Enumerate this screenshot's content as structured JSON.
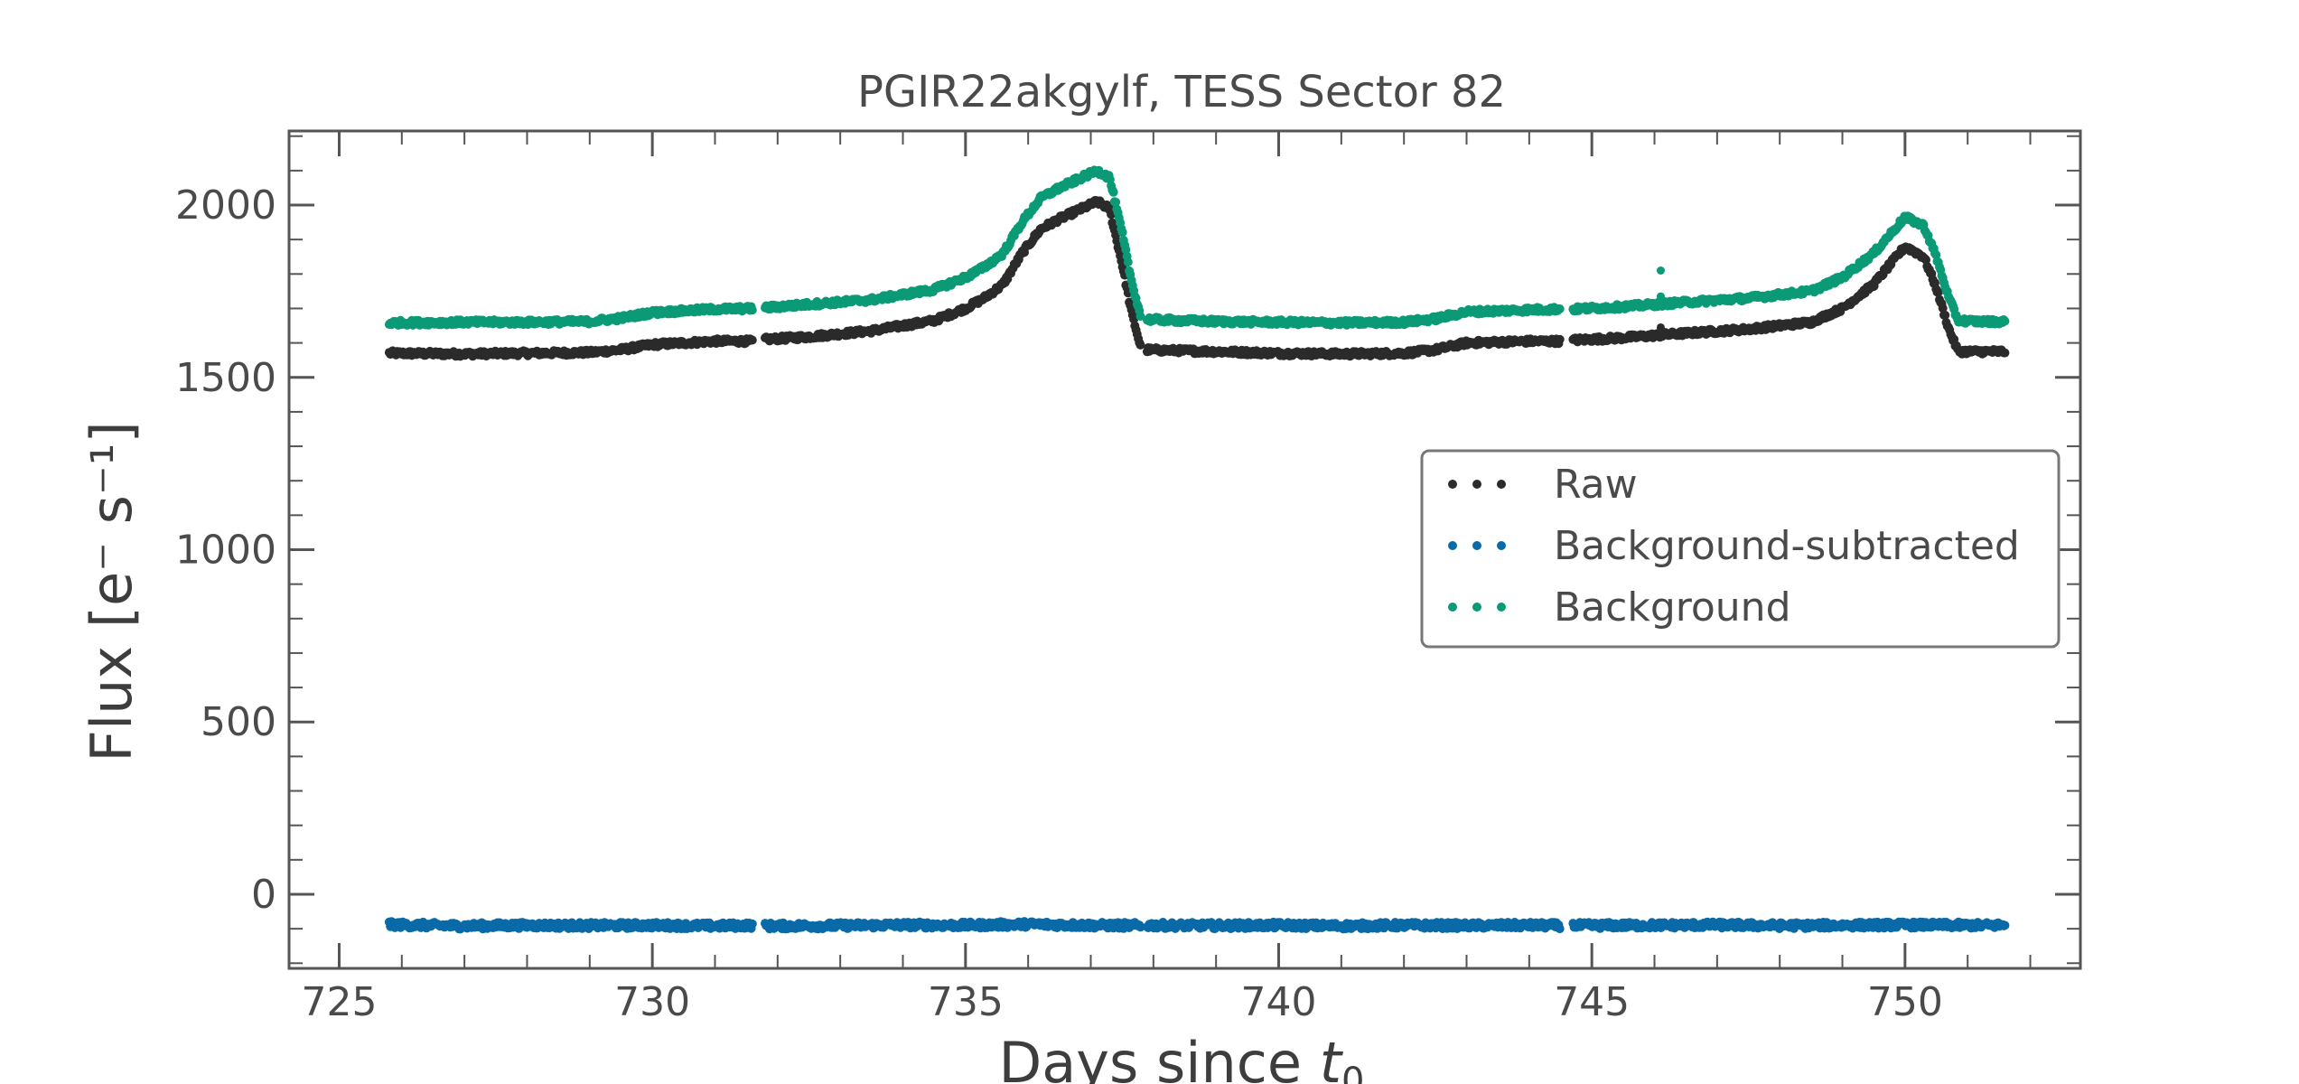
{
  "chart_data": {
    "type": "scatter",
    "title": "PGIR22akgylf, TESS Sector 82",
    "xlabel_prefix": "Days since ",
    "xlabel_var": "t",
    "xlabel_sub": "0",
    "ylabel": "Flux [e⁻ s⁻¹]",
    "xlim": [
      724.2,
      752.8
    ],
    "ylim": [
      -215,
      2215
    ],
    "x_ticks": [
      725,
      730,
      735,
      740,
      745,
      750
    ],
    "x_tick_labels": [
      "725",
      "730",
      "735",
      "740",
      "745",
      "750"
    ],
    "y_ticks": [
      0,
      500,
      1000,
      1500,
      2000
    ],
    "y_tick_labels": [
      "0",
      "500",
      "1000",
      "1500",
      "2000"
    ],
    "grid": false,
    "legend_position": "center-right",
    "segments": [
      [
        725.8,
        731.6
      ],
      [
        731.8,
        737.8
      ],
      [
        737.9,
        744.5
      ],
      [
        744.7,
        751.6
      ]
    ],
    "series": [
      {
        "name": "Raw",
        "color": "#2b2b2b",
        "points": [
          [
            725.8,
            1570
          ],
          [
            727,
            1568
          ],
          [
            728,
            1570
          ],
          [
            729,
            1572
          ],
          [
            729.5,
            1580
          ],
          [
            730,
            1595
          ],
          [
            731,
            1605
          ],
          [
            731.6,
            1605
          ],
          [
            731.8,
            1610
          ],
          [
            732.5,
            1618
          ],
          [
            733.5,
            1635
          ],
          [
            734.5,
            1665
          ],
          [
            735,
            1700
          ],
          [
            735.3,
            1730
          ],
          [
            735.6,
            1770
          ],
          [
            735.9,
            1860
          ],
          [
            736.2,
            1930
          ],
          [
            736.5,
            1960
          ],
          [
            736.8,
            1985
          ],
          [
            737.1,
            2010
          ],
          [
            737.3,
            1990
          ],
          [
            737.5,
            1830
          ],
          [
            737.65,
            1690
          ],
          [
            737.8,
            1585
          ],
          [
            737.9,
            1580
          ],
          [
            739,
            1575
          ],
          [
            740,
            1570
          ],
          [
            741,
            1568
          ],
          [
            742,
            1570
          ],
          [
            742.5,
            1580
          ],
          [
            743,
            1600
          ],
          [
            744,
            1605
          ],
          [
            744.5,
            1605
          ],
          [
            744.7,
            1608
          ],
          [
            745.5,
            1615
          ],
          [
            746.5,
            1628
          ],
          [
            747.5,
            1640
          ],
          [
            748.5,
            1660
          ],
          [
            749,
            1700
          ],
          [
            749.5,
            1770
          ],
          [
            750,
            1880
          ],
          [
            750.3,
            1850
          ],
          [
            750.5,
            1760
          ],
          [
            750.7,
            1640
          ],
          [
            750.85,
            1575
          ],
          [
            751.2,
            1575
          ],
          [
            751.6,
            1575
          ]
        ]
      },
      {
        "name": "Background-subtracted",
        "color": "#0a6aa8",
        "points": [
          [
            725.8,
            -88
          ],
          [
            727,
            -92
          ],
          [
            728,
            -90
          ],
          [
            729,
            -91
          ],
          [
            730,
            -90
          ],
          [
            731,
            -92
          ],
          [
            731.6,
            -90
          ],
          [
            731.8,
            -92
          ],
          [
            733,
            -91
          ],
          [
            734,
            -89
          ],
          [
            735,
            -90
          ],
          [
            736,
            -87
          ],
          [
            737,
            -90
          ],
          [
            737.8,
            -91
          ],
          [
            737.9,
            -90
          ],
          [
            739,
            -91
          ],
          [
            740,
            -90
          ],
          [
            741,
            -92
          ],
          [
            742,
            -90
          ],
          [
            743,
            -91
          ],
          [
            744,
            -90
          ],
          [
            744.5,
            -91
          ],
          [
            744.7,
            -91
          ],
          [
            746,
            -90
          ],
          [
            747,
            -89
          ],
          [
            748,
            -91
          ],
          [
            749,
            -90
          ],
          [
            750,
            -89
          ],
          [
            751,
            -90
          ],
          [
            751.6,
            -90
          ]
        ]
      },
      {
        "name": "Background",
        "color": "#0b9a76",
        "points": [
          [
            725.8,
            1658
          ],
          [
            727,
            1660
          ],
          [
            728,
            1660
          ],
          [
            729,
            1662
          ],
          [
            729.5,
            1672
          ],
          [
            730,
            1688
          ],
          [
            731,
            1698
          ],
          [
            731.6,
            1700
          ],
          [
            731.8,
            1702
          ],
          [
            732.5,
            1712
          ],
          [
            733.5,
            1725
          ],
          [
            734.5,
            1755
          ],
          [
            735,
            1790
          ],
          [
            735.3,
            1820
          ],
          [
            735.6,
            1860
          ],
          [
            735.9,
            1950
          ],
          [
            736.2,
            2020
          ],
          [
            736.5,
            2050
          ],
          [
            736.8,
            2075
          ],
          [
            737.1,
            2100
          ],
          [
            737.3,
            2080
          ],
          [
            737.5,
            1920
          ],
          [
            737.65,
            1780
          ],
          [
            737.8,
            1675
          ],
          [
            737.9,
            1668
          ],
          [
            739,
            1662
          ],
          [
            740,
            1660
          ],
          [
            741,
            1658
          ],
          [
            742,
            1660
          ],
          [
            742.5,
            1670
          ],
          [
            743,
            1690
          ],
          [
            744,
            1696
          ],
          [
            744.5,
            1698
          ],
          [
            744.7,
            1698
          ],
          [
            745.5,
            1705
          ],
          [
            746.5,
            1718
          ],
          [
            747.5,
            1730
          ],
          [
            748.5,
            1750
          ],
          [
            749,
            1790
          ],
          [
            749.5,
            1860
          ],
          [
            750,
            1965
          ],
          [
            750.3,
            1940
          ],
          [
            750.5,
            1850
          ],
          [
            750.7,
            1730
          ],
          [
            750.85,
            1665
          ],
          [
            751.2,
            1662
          ],
          [
            751.6,
            1662
          ]
        ]
      }
    ],
    "annotations": [
      {
        "x": 746.1,
        "y": 1810,
        "series": "Background"
      },
      {
        "x": 746.1,
        "y": 1735,
        "series": "Background"
      },
      {
        "x": 746.1,
        "y": 1645,
        "series": "Raw"
      }
    ]
  }
}
